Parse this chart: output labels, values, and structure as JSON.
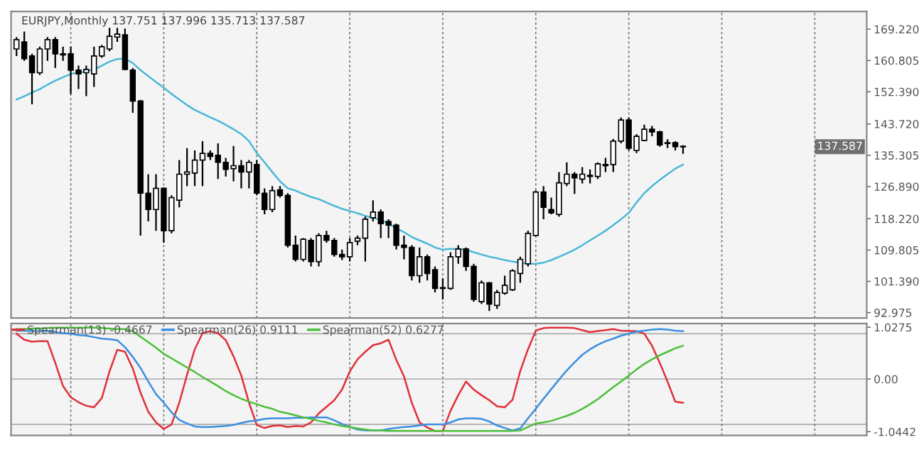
{
  "chart_data": [
    {
      "type": "candlestick",
      "title": "EURJPY,Monthly 137.751 137.996 135.713 137.587",
      "categories": [
        null,
        null,
        null,
        null,
        null,
        null,
        null,
        null,
        null,
        null,
        null,
        null,
        null,
        null,
        null,
        null,
        null,
        null,
        null,
        null,
        null,
        null,
        null,
        null,
        null,
        null,
        null,
        null,
        null,
        null,
        null,
        null,
        null,
        null,
        null,
        null,
        null,
        null,
        null,
        null,
        null,
        null,
        null,
        null,
        null,
        null,
        null,
        null,
        null,
        null,
        null,
        null,
        null,
        null,
        null,
        null,
        null,
        null,
        null,
        null,
        null,
        null,
        null,
        null,
        null,
        null,
        null,
        null,
        null,
        null,
        null,
        null,
        null,
        null,
        null,
        null,
        null,
        null,
        null,
        null,
        null,
        null,
        null,
        null,
        null,
        null,
        null,
        null,
        null,
        null,
        null,
        null,
        null,
        null,
        null,
        null,
        null,
        null,
        null,
        null,
        null,
        null,
        null,
        null,
        null,
        null,
        null,
        null,
        null,
        null
      ],
      "ohlc": [
        [
          163.9,
          167.1,
          162.0,
          166.4
        ],
        [
          165.8,
          168.6,
          160.7,
          161.3
        ],
        [
          162.0,
          162.6,
          149.0,
          157.5
        ],
        [
          157.5,
          164.5,
          156.9,
          163.9
        ],
        [
          163.9,
          167.1,
          160.7,
          166.4
        ],
        [
          166.4,
          167.1,
          158.8,
          162.6
        ],
        [
          162.6,
          164.5,
          160.7,
          162.3
        ],
        [
          162.6,
          164.5,
          151.8,
          158.2
        ],
        [
          158.2,
          159.4,
          153.1,
          157.2
        ],
        [
          157.5,
          159.4,
          151.2,
          158.4
        ],
        [
          157.2,
          164.5,
          153.7,
          162.0
        ],
        [
          162.0,
          165.0,
          161.5,
          164.5
        ],
        [
          163.9,
          169.6,
          163.3,
          167.3
        ],
        [
          167.1,
          169.6,
          165.8,
          167.9
        ],
        [
          167.7,
          169.4,
          158.2,
          158.4
        ],
        [
          158.2,
          158.8,
          146.7,
          149.9
        ],
        [
          149.9,
          150.2,
          113.7,
          125.1
        ],
        [
          125.1,
          130.2,
          117.5,
          120.7
        ],
        [
          120.7,
          130.2,
          115.0,
          126.4
        ],
        [
          126.4,
          126.6,
          111.8,
          115.0
        ],
        [
          115.0,
          124.5,
          114.3,
          123.9
        ],
        [
          123.2,
          134.0,
          121.3,
          130.2
        ],
        [
          130.2,
          137.2,
          127.0,
          130.8
        ],
        [
          130.5,
          136.6,
          127.0,
          134.0
        ],
        [
          134.0,
          139.1,
          127.0,
          135.8
        ],
        [
          135.8,
          136.6,
          134.0,
          135.0
        ],
        [
          135.3,
          138.5,
          128.9,
          133.4
        ],
        [
          133.4,
          134.6,
          129.6,
          131.5
        ],
        [
          131.7,
          137.8,
          128.3,
          132.5
        ],
        [
          132.5,
          134.0,
          126.4,
          130.8
        ],
        [
          130.8,
          134.0,
          126.4,
          133.4
        ],
        [
          132.8,
          134.0,
          124.5,
          125.1
        ],
        [
          125.1,
          126.4,
          119.4,
          120.7
        ],
        [
          120.7,
          127.0,
          120.0,
          125.8
        ],
        [
          126.0,
          127.0,
          123.9,
          124.5
        ],
        [
          124.5,
          125.1,
          110.5,
          111.1
        ],
        [
          111.1,
          113.7,
          106.7,
          107.3
        ],
        [
          107.3,
          113.0,
          106.7,
          112.7
        ],
        [
          112.4,
          113.0,
          105.4,
          106.7
        ],
        [
          106.7,
          114.3,
          105.4,
          113.7
        ],
        [
          113.7,
          115.0,
          111.8,
          112.4
        ],
        [
          112.4,
          113.0,
          108.0,
          108.6
        ],
        [
          108.6,
          109.9,
          107.1,
          108.0
        ],
        [
          108.0,
          113.0,
          106.7,
          111.8
        ],
        [
          112.2,
          113.7,
          111.1,
          113.0
        ],
        [
          113.0,
          118.8,
          106.7,
          118.1
        ],
        [
          118.5,
          123.2,
          117.5,
          120.0
        ],
        [
          120.0,
          120.7,
          113.0,
          116.9
        ],
        [
          117.5,
          118.1,
          113.0,
          116.5
        ],
        [
          116.5,
          116.9,
          109.9,
          111.1
        ],
        [
          111.1,
          113.7,
          107.3,
          110.5
        ],
        [
          110.5,
          111.1,
          101.6,
          102.9
        ],
        [
          102.9,
          110.5,
          101.0,
          108.0
        ],
        [
          108.0,
          108.6,
          101.6,
          103.5
        ],
        [
          104.5,
          105.4,
          98.4,
          99.5
        ],
        [
          99.5,
          102.2,
          96.5,
          99.7
        ],
        [
          99.5,
          109.2,
          99.1,
          108.0
        ],
        [
          108.0,
          111.1,
          106.1,
          110.1
        ],
        [
          110.1,
          110.5,
          104.2,
          105.4
        ],
        [
          105.4,
          106.1,
          95.9,
          96.5
        ],
        [
          95.9,
          101.6,
          95.3,
          101.0
        ],
        [
          101.0,
          101.2,
          93.4,
          95.3
        ],
        [
          94.9,
          99.1,
          94.0,
          98.4
        ],
        [
          98.2,
          102.9,
          97.8,
          100.3
        ],
        [
          99.1,
          104.6,
          98.8,
          104.2
        ],
        [
          103.5,
          108.0,
          101.0,
          107.3
        ],
        [
          106.1,
          115.0,
          105.4,
          114.3
        ],
        [
          113.7,
          125.8,
          113.5,
          125.4
        ],
        [
          125.4,
          127.0,
          118.1,
          121.3
        ],
        [
          120.7,
          123.9,
          119.4,
          119.8
        ],
        [
          119.4,
          130.8,
          118.8,
          127.9
        ],
        [
          127.7,
          133.4,
          127.0,
          130.2
        ],
        [
          130.2,
          130.8,
          124.9,
          129.2
        ],
        [
          128.9,
          132.1,
          127.7,
          130.2
        ],
        [
          129.9,
          131.5,
          127.7,
          129.6
        ],
        [
          129.6,
          133.4,
          128.9,
          133.0
        ],
        [
          132.8,
          134.6,
          130.8,
          132.5
        ],
        [
          132.8,
          139.7,
          130.8,
          139.1
        ],
        [
          139.1,
          145.5,
          138.5,
          144.8
        ],
        [
          144.8,
          145.5,
          136.6,
          137.2
        ],
        [
          136.6,
          141.0,
          135.9,
          140.4
        ],
        [
          139.3,
          143.5,
          139.1,
          142.3
        ],
        [
          142.3,
          143.2,
          140.4,
          141.6
        ],
        [
          141.6,
          141.9,
          137.6,
          138.1
        ],
        [
          138.7,
          139.6,
          137.2,
          138.5
        ],
        [
          138.7,
          139.1,
          136.6,
          137.6
        ],
        [
          137.751,
          137.996,
          135.713,
          137.587
        ],
        null,
        null,
        null,
        null,
        null,
        null,
        null,
        null,
        null,
        null,
        null,
        null,
        null,
        null,
        null,
        null,
        null,
        null,
        null,
        null,
        null,
        null,
        null
      ],
      "series": [
        {
          "type": "line",
          "color": "#4ab8d8",
          "values": [
            150.3,
            151.2,
            152.2,
            153.1,
            154.3,
            155.4,
            156.3,
            157.2,
            157.5,
            157.9,
            158.4,
            159.4,
            160.5,
            161.2,
            161.3,
            160.1,
            158.2,
            156.6,
            155.0,
            153.5,
            151.8,
            150.3,
            148.8,
            147.5,
            146.5,
            145.5,
            144.6,
            143.5,
            142.3,
            141.0,
            139.1,
            135.9,
            133.4,
            130.8,
            128.3,
            126.4,
            125.8,
            124.9,
            124.1,
            123.5,
            122.6,
            121.7,
            120.9,
            120.3,
            119.7,
            119.0,
            118.5,
            117.9,
            116.9,
            115.6,
            114.6,
            113.3,
            112.4,
            111.5,
            110.5,
            109.9,
            110.1,
            110.1,
            109.9,
            109.2,
            108.6,
            108.0,
            107.6,
            107.1,
            106.7,
            106.4,
            106.1,
            106.1,
            106.4,
            107.1,
            108.0,
            108.9,
            109.9,
            111.1,
            112.4,
            113.7,
            115.0,
            116.5,
            118.1,
            119.8,
            122.6,
            125.1,
            127.0,
            128.7,
            130.2,
            131.7,
            132.8,
            null,
            null,
            null,
            null,
            null,
            null,
            null,
            null,
            null,
            null,
            null,
            null,
            null,
            null,
            null,
            null,
            null,
            null,
            null,
            null,
            null,
            null,
            null
          ]
        }
      ],
      "ylim": [
        91.5,
        174.0
      ],
      "yticks": [
        {
          "value": 169.22,
          "label": "169.220"
        },
        {
          "value": 160.805,
          "label": "160.805"
        },
        {
          "value": 152.39,
          "label": "152.390"
        },
        {
          "value": 143.72,
          "label": "143.720"
        },
        {
          "value": 135.305,
          "label": "135.305"
        },
        {
          "value": 126.89,
          "label": "126.890"
        },
        {
          "value": 118.22,
          "label": "118.220"
        },
        {
          "value": 109.805,
          "label": "109.805"
        },
        {
          "value": 101.39,
          "label": "101.390"
        },
        {
          "value": 92.975,
          "label": "92.975"
        }
      ],
      "annotations": [
        "137.587"
      ],
      "grid": "x",
      "tick_labels": "y"
    },
    {
      "type": "line",
      "categories": [
        null,
        null,
        null,
        null,
        null,
        null,
        null,
        null,
        null,
        null,
        null,
        null,
        null,
        null,
        null,
        null,
        null,
        null,
        null,
        null,
        null,
        null,
        null,
        null,
        null,
        null,
        null,
        null,
        null,
        null,
        null,
        null,
        null,
        null,
        null,
        null,
        null,
        null,
        null,
        null,
        null,
        null,
        null,
        null,
        null,
        null,
        null,
        null,
        null,
        null,
        null,
        null,
        null,
        null,
        null,
        null,
        null,
        null,
        null,
        null,
        null,
        null,
        null,
        null,
        null,
        null,
        null,
        null,
        null,
        null,
        null,
        null,
        null,
        null,
        null,
        null,
        null,
        null,
        null,
        null,
        null,
        null,
        null,
        null,
        null,
        null,
        null,
        null,
        null,
        null,
        null,
        null,
        null,
        null,
        null,
        null,
        null,
        null,
        null,
        null,
        null,
        null,
        null,
        null,
        null,
        null,
        null,
        null,
        null,
        null
      ],
      "series": [
        {
          "name": "Spearman(13) -0.4667",
          "color": "#e0303a",
          "values": [
            0.9,
            0.78,
            0.74,
            0.75,
            0.75,
            0.32,
            -0.14,
            -0.36,
            -0.46,
            -0.53,
            -0.56,
            -0.38,
            0.15,
            0.58,
            0.54,
            0.21,
            -0.27,
            -0.65,
            -0.86,
            -0.99,
            -0.9,
            -0.47,
            0.08,
            0.59,
            0.91,
            0.95,
            0.91,
            0.77,
            0.45,
            0.07,
            -0.47,
            -0.91,
            -0.97,
            -0.93,
            -0.92,
            -0.95,
            -0.93,
            -0.94,
            -0.86,
            -0.68,
            -0.55,
            -0.42,
            -0.21,
            0.15,
            0.39,
            0.54,
            0.67,
            0.71,
            0.78,
            0.38,
            0.05,
            -0.47,
            -0.86,
            -0.96,
            -1.03,
            -1.03,
            -0.63,
            -0.32,
            -0.05,
            -0.21,
            -0.32,
            -0.42,
            -0.54,
            -0.56,
            -0.41,
            0.16,
            0.59,
            0.96,
            1.01,
            1.02,
            1.02,
            1.02,
            1.01,
            0.97,
            0.93,
            0.95,
            0.97,
            0.99,
            0.96,
            0.95,
            0.95,
            0.9,
            0.66,
            0.32,
            -0.05,
            -0.45,
            -0.47,
            null,
            null,
            null,
            null,
            null,
            null,
            null,
            null,
            null,
            null,
            null,
            null,
            null,
            null,
            null,
            null,
            null,
            null,
            null,
            null,
            null,
            null,
            null
          ]
        },
        {
          "name": "Spearman(26) 0.9111",
          "color": "#3a8fe0",
          "values": [
            0.96,
            0.96,
            0.95,
            0.95,
            0.95,
            0.93,
            0.91,
            0.9,
            0.87,
            0.86,
            0.83,
            0.8,
            0.79,
            0.77,
            0.63,
            0.44,
            0.22,
            -0.05,
            -0.3,
            -0.47,
            -0.66,
            -0.81,
            -0.88,
            -0.94,
            -0.95,
            -0.95,
            -0.94,
            -0.93,
            -0.91,
            -0.87,
            -0.84,
            -0.82,
            -0.79,
            -0.78,
            -0.78,
            -0.78,
            -0.77,
            -0.77,
            -0.76,
            -0.76,
            -0.76,
            -0.82,
            -0.89,
            -0.95,
            -1.0,
            -1.02,
            -1.02,
            -1.02,
            -0.99,
            -0.97,
            -0.95,
            -0.94,
            -0.92,
            -0.9,
            -0.9,
            -0.9,
            -0.86,
            -0.8,
            -0.78,
            -0.78,
            -0.79,
            -0.84,
            -0.92,
            -0.97,
            -1.02,
            -0.98,
            -0.78,
            -0.59,
            -0.39,
            -0.2,
            -0.01,
            0.17,
            0.33,
            0.48,
            0.59,
            0.68,
            0.75,
            0.8,
            0.86,
            0.9,
            0.94,
            0.96,
            0.98,
            0.99,
            0.98,
            0.96,
            0.95,
            null,
            null,
            null,
            null,
            null,
            null,
            null,
            null,
            null,
            null,
            null,
            null,
            null,
            null,
            null,
            null,
            null,
            null,
            null,
            null,
            null,
            null,
            null
          ]
        },
        {
          "name": "Spearman(52) 0.6277",
          "color": "#4cbf3a",
          "values": [
            0.99,
            0.99,
            1.0,
            1.0,
            1.01,
            1.02,
            1.02,
            1.02,
            1.02,
            1.02,
            1.02,
            1.01,
            1.0,
            0.99,
            0.99,
            0.95,
            0.84,
            0.73,
            0.62,
            0.5,
            0.41,
            0.32,
            0.23,
            0.14,
            0.04,
            -0.05,
            -0.14,
            -0.24,
            -0.32,
            -0.39,
            -0.45,
            -0.5,
            -0.55,
            -0.59,
            -0.65,
            -0.68,
            -0.72,
            -0.76,
            -0.79,
            -0.83,
            -0.86,
            -0.9,
            -0.93,
            -0.95,
            -0.98,
            -1.0,
            -1.02,
            -1.02,
            -1.03,
            -1.03,
            -1.03,
            -1.03,
            -1.03,
            -1.03,
            -1.03,
            -1.03,
            -1.03,
            -1.03,
            -1.03,
            -1.03,
            -1.03,
            -1.03,
            -1.03,
            -1.03,
            -1.03,
            -1.02,
            -0.95,
            -0.88,
            -0.86,
            -0.83,
            -0.78,
            -0.73,
            -0.67,
            -0.59,
            -0.5,
            -0.4,
            -0.28,
            -0.16,
            -0.05,
            0.07,
            0.19,
            0.3,
            0.39,
            0.47,
            0.54,
            0.61,
            0.66,
            null,
            null,
            null,
            null,
            null,
            null,
            null,
            null,
            null,
            null,
            null,
            null,
            null,
            null,
            null,
            null,
            null,
            null,
            null,
            null,
            null,
            null,
            null
          ]
        }
      ],
      "ylim": [
        -1.12,
        1.1
      ],
      "yticks": [
        {
          "value": 1.0275,
          "label": "1.0275"
        },
        {
          "value": 0,
          "label": "0.00"
        },
        {
          "value": -1.0442,
          "label": "-1.0442"
        }
      ],
      "ref_lines": [
        {
          "axis": "y",
          "value": 0.9,
          "color": "#b4b4b4"
        },
        {
          "axis": "y",
          "value": 0,
          "color": "#b4b4b4"
        },
        {
          "axis": "y",
          "value": -0.9,
          "color": "#b4b4b4"
        }
      ],
      "legend": "top left",
      "grid": "x",
      "tick_labels": "y"
    }
  ]
}
